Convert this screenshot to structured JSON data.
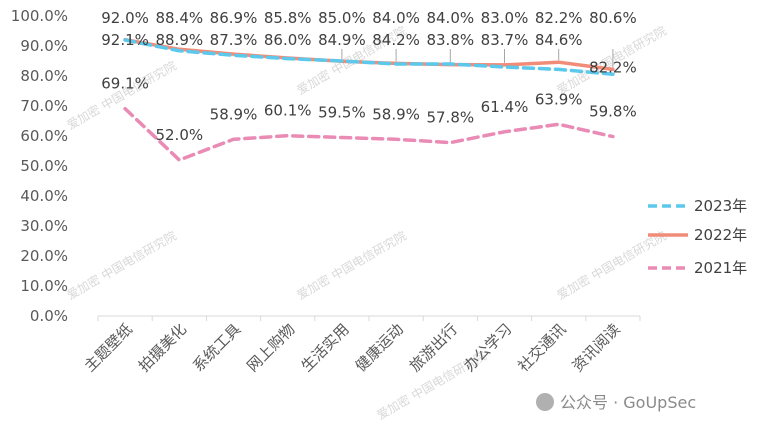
{
  "chart_data": {
    "type": "line",
    "title": "",
    "xlabel": "",
    "ylabel": "",
    "ylim": [
      0,
      100
    ],
    "ytick_step": 10,
    "yticks": [
      "0.0%",
      "10.0%",
      "20.0%",
      "30.0%",
      "40.0%",
      "50.0%",
      "60.0%",
      "70.0%",
      "80.0%",
      "90.0%",
      "100.0%"
    ],
    "categories": [
      "主题壁纸",
      "拍摄美化",
      "系统工具",
      "网上购物",
      "生活实用",
      "健康运动",
      "旅游出行",
      "办公学习",
      "社交通讯",
      "资讯阅读"
    ],
    "series": [
      {
        "name": "2023年",
        "color": "#5BC8EC",
        "dash": "dashed",
        "values": [
          92.0,
          88.4,
          86.9,
          85.8,
          85.0,
          84.0,
          84.0,
          83.0,
          82.2,
          80.6
        ],
        "labels": [
          "92.0%",
          "88.4%",
          "86.9%",
          "85.8%",
          "85.0%",
          "84.0%",
          "84.0%",
          "83.0%",
          "82.2%",
          "80.6%"
        ]
      },
      {
        "name": "2022年",
        "color": "#F08C77",
        "dash": "solid",
        "values": [
          92.1,
          88.9,
          87.3,
          86.0,
          84.9,
          84.2,
          83.8,
          83.7,
          84.6,
          82.2
        ],
        "labels": [
          "92.1%",
          "88.9%",
          "87.3%",
          "86.0%",
          "84.9%",
          "84.2%",
          "83.8%",
          "83.7%",
          "84.6%",
          "82.2%"
        ]
      },
      {
        "name": "2021年",
        "color": "#E98BB4",
        "dash": "dashed",
        "values": [
          69.1,
          52.0,
          58.9,
          60.1,
          59.5,
          58.9,
          57.8,
          61.4,
          63.9,
          59.8
        ],
        "labels": [
          "69.1%",
          "52.0%",
          "58.9%",
          "60.1%",
          "59.5%",
          "58.9%",
          "57.8%",
          "61.4%",
          "63.9%",
          "59.8%"
        ]
      }
    ],
    "legend_position": "right"
  },
  "watermark": {
    "text": "爱加密 中国电信研究院",
    "brand": "公众号 · GoUpSec"
  }
}
